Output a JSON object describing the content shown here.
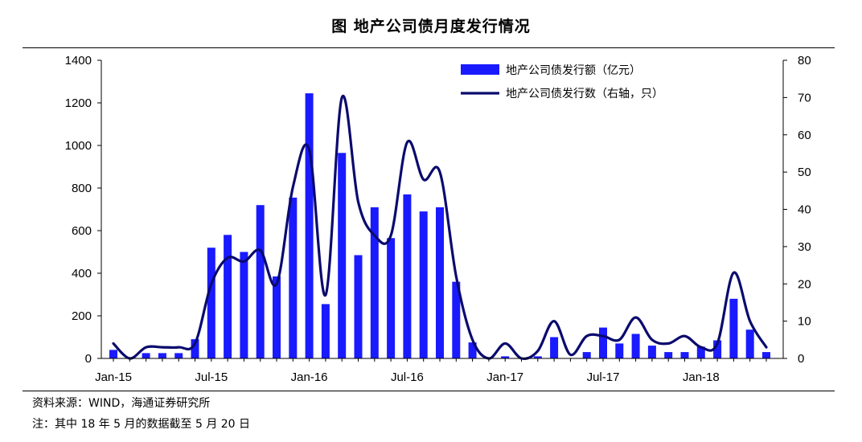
{
  "header": {
    "title": "图  地产公司债月度发行情况"
  },
  "notes": {
    "source": "资料来源：WIND，海通证券研究所",
    "footnote": "注：其中 18 年 5 月的数据截至 5 月 20 日"
  },
  "colors": {
    "bar": "#1a1aff",
    "line": "#0a0a6e",
    "axis": "#000000"
  },
  "chart_data": {
    "type": "bar",
    "title": "图  地产公司债月度发行情况",
    "x_tick_labels": [
      "Jan-15",
      "Jul-15",
      "Jan-16",
      "Jul-16",
      "Jan-17",
      "Jul-17",
      "Jan-18"
    ],
    "x_tick_months": [
      "2015-01",
      "2015-07",
      "2016-01",
      "2016-07",
      "2017-01",
      "2017-07",
      "2018-01"
    ],
    "y_left_ticks": [
      "0",
      "200",
      "400",
      "600",
      "800",
      "1000",
      "1200",
      "1400"
    ],
    "y_right_ticks": [
      "0",
      "10",
      "20",
      "30",
      "40",
      "50",
      "60",
      "70",
      "80"
    ],
    "ylim_left": [
      0,
      1400
    ],
    "ylim_right": [
      0,
      80
    ],
    "grid": false,
    "legend_position": "top-right",
    "x": [
      "2015-01",
      "2015-02",
      "2015-03",
      "2015-04",
      "2015-05",
      "2015-06",
      "2015-07",
      "2015-08",
      "2015-09",
      "2015-10",
      "2015-11",
      "2015-12",
      "2016-01",
      "2016-02",
      "2016-03",
      "2016-04",
      "2016-05",
      "2016-06",
      "2016-07",
      "2016-08",
      "2016-09",
      "2016-10",
      "2016-11",
      "2016-12",
      "2017-01",
      "2017-02",
      "2017-03",
      "2017-04",
      "2017-05",
      "2017-06",
      "2017-07",
      "2017-08",
      "2017-09",
      "2017-10",
      "2017-11",
      "2017-12",
      "2018-01",
      "2018-02",
      "2018-03",
      "2018-04",
      "2018-05"
    ],
    "series": [
      {
        "name": "地产公司债发行额（亿元）",
        "type": "bar",
        "axis": "left",
        "values": [
          40,
          0,
          25,
          25,
          25,
          90,
          520,
          580,
          500,
          720,
          385,
          755,
          1245,
          255,
          965,
          485,
          710,
          565,
          770,
          690,
          710,
          360,
          75,
          0,
          10,
          0,
          10,
          100,
          0,
          30,
          145,
          70,
          115,
          60,
          30,
          30,
          55,
          85,
          280,
          135,
          30
        ]
      },
      {
        "name": "地产公司债发行数（右轴，只）",
        "type": "line",
        "axis": "right",
        "values": [
          4,
          0,
          3,
          3,
          3,
          4,
          20,
          27,
          26,
          29,
          20,
          46,
          56,
          17,
          70,
          42,
          33,
          33,
          58,
          48,
          50,
          22,
          5,
          0,
          4,
          0,
          2,
          10,
          1,
          6,
          6,
          5,
          11,
          5,
          4,
          6,
          3,
          4,
          23,
          10,
          3
        ]
      }
    ]
  }
}
